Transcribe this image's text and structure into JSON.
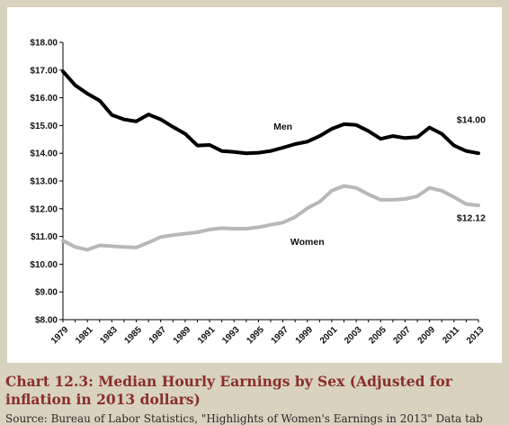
{
  "caption": "Chart 12.3: Median Hourly Earnings by Sex (Adjusted for inflation in 2013 dollars)",
  "source": "Source: Bureau of Labor Statistics, \"Highlights of Women's Earnings in 2013\" Data tab",
  "chart_data": {
    "type": "line",
    "title": "",
    "xlabel": "",
    "ylabel": "",
    "x": [
      1979,
      1980,
      1981,
      1982,
      1983,
      1984,
      1985,
      1986,
      1987,
      1988,
      1989,
      1990,
      1991,
      1992,
      1993,
      1994,
      1995,
      1996,
      1997,
      1998,
      1999,
      2000,
      2001,
      2002,
      2003,
      2004,
      2005,
      2006,
      2007,
      2008,
      2009,
      2010,
      2011,
      2012,
      2013
    ],
    "x_tick_labels": [
      "1979",
      "1981",
      "1983",
      "1985",
      "1987",
      "1989",
      "1991",
      "1993",
      "1995",
      "1997",
      "1999",
      "2001",
      "2003",
      "2005",
      "2007",
      "2009",
      "2011",
      "2013"
    ],
    "ylim": [
      8,
      18
    ],
    "y_tick_labels": [
      "$8.00",
      "$9.00",
      "$10.00",
      "$11.00",
      "$12.00",
      "$13.00",
      "$14.00",
      "$15.00",
      "$16.00",
      "$17.00",
      "$18.00"
    ],
    "grid": false,
    "series": [
      {
        "name": "Men",
        "color": "#000000",
        "values": [
          16.95,
          16.45,
          16.15,
          15.9,
          15.38,
          15.22,
          15.15,
          15.4,
          15.22,
          14.95,
          14.7,
          14.28,
          14.3,
          14.08,
          14.05,
          14.0,
          14.02,
          14.08,
          14.2,
          14.33,
          14.42,
          14.62,
          14.88,
          15.05,
          15.02,
          14.8,
          14.52,
          14.62,
          14.55,
          14.58,
          14.93,
          14.7,
          14.28,
          14.08,
          14.0
        ]
      },
      {
        "name": "Women",
        "color": "#b8b8b8",
        "values": [
          10.85,
          10.62,
          10.52,
          10.68,
          10.65,
          10.62,
          10.6,
          10.78,
          10.98,
          11.05,
          11.1,
          11.15,
          11.25,
          11.3,
          11.28,
          11.28,
          11.33,
          11.42,
          11.5,
          11.7,
          12.02,
          12.25,
          12.65,
          12.82,
          12.75,
          12.52,
          12.32,
          12.32,
          12.35,
          12.45,
          12.75,
          12.65,
          12.42,
          12.17,
          12.12
        ]
      }
    ],
    "annotations": [
      {
        "text": "Men",
        "x": 1997,
        "y": 14.85
      },
      {
        "text": "Women",
        "x": 1999,
        "y": 10.7
      },
      {
        "text": "$14.00",
        "x": 2013,
        "y": 15.1
      },
      {
        "text": "$12.12",
        "x": 2013,
        "y": 11.55
      }
    ]
  }
}
